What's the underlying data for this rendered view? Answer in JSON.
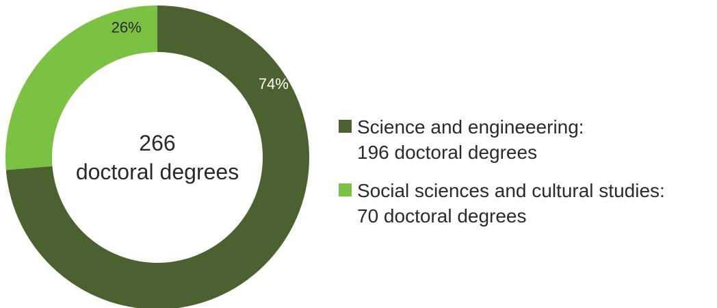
{
  "chart_data": {
    "type": "pie",
    "donut": true,
    "center_label": {
      "line1": "266",
      "line2": "doctoral degrees"
    },
    "total": 266,
    "slices": [
      {
        "label": "Science and engineeering:",
        "detail": "196 doctoral degrees",
        "value": 196,
        "percent_label": "74%",
        "color": "#4c6130",
        "label_color": "#ffffff"
      },
      {
        "label": "Social sciences and cultural studies:",
        "detail": "70 doctoral degrees",
        "value": 70,
        "percent_label": "26%",
        "color": "#7bc143",
        "label_color": "#2a2a2a"
      }
    ],
    "legend_position": "right"
  }
}
